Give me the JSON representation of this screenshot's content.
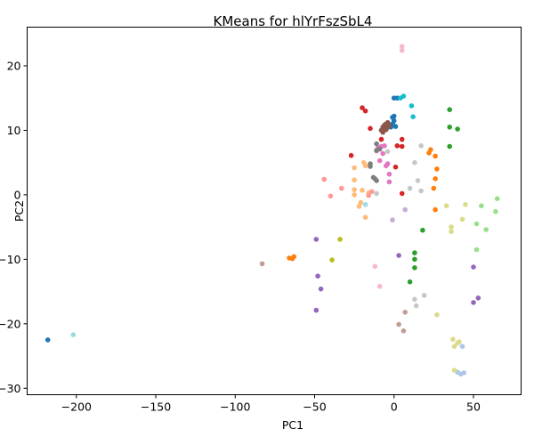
{
  "chart_data": {
    "type": "scatter",
    "title": "KMeans for hlYrFszSbL4",
    "xlabel": "PC1",
    "ylabel": "PC2",
    "xlim": [
      -231,
      80
    ],
    "ylim": [
      -31,
      26
    ],
    "xticks": [
      -200,
      -150,
      -100,
      -50,
      0,
      50
    ],
    "yticks": [
      -30,
      -20,
      -10,
      0,
      10,
      20
    ],
    "xtick_labels": [
      "−200",
      "−150",
      "−100",
      "−50",
      "0",
      "50"
    ],
    "ytick_labels": [
      "−30",
      "−20",
      "−10",
      "0",
      "10",
      "20"
    ],
    "grid": false,
    "series": [
      {
        "color": "#1f77b4",
        "points": [
          [
            -218,
            -22.5
          ],
          [
            0,
            15
          ],
          [
            2,
            15
          ],
          [
            -1,
            11
          ],
          [
            0,
            11.5
          ],
          [
            -2,
            10.5
          ],
          [
            -1,
            12
          ],
          [
            -3,
            10.8
          ],
          [
            1,
            10.6
          ],
          [
            0,
            12.2
          ],
          [
            -1,
            10.9
          ]
        ]
      },
      {
        "color": "#aec7e8",
        "points": [
          [
            40,
            -27.5
          ],
          [
            42,
            -27.8
          ],
          [
            43,
            -23.5
          ],
          [
            44,
            -27.6
          ]
        ]
      },
      {
        "color": "#ff7f0e",
        "points": [
          [
            -66,
            -9.8
          ],
          [
            -64,
            -9.9
          ],
          [
            -63,
            -9.6
          ],
          [
            22,
            6.5
          ],
          [
            23,
            7
          ],
          [
            25,
            1
          ],
          [
            26,
            2.5
          ],
          [
            26,
            6
          ],
          [
            27,
            4
          ],
          [
            26,
            -2.3
          ]
        ]
      },
      {
        "color": "#ffbb78",
        "points": [
          [
            -25,
            4.2
          ],
          [
            -25,
            0.8
          ],
          [
            -25,
            2.3
          ],
          [
            -25,
            0
          ],
          [
            -22,
            -1.8
          ],
          [
            -19,
            5
          ],
          [
            -18,
            -3.5
          ],
          [
            -21,
            -1.2
          ],
          [
            -18,
            4.5
          ],
          [
            -20,
            0.7
          ],
          [
            -16,
            0.3
          ]
        ]
      },
      {
        "color": "#2ca02c",
        "points": [
          [
            35,
            13.2
          ],
          [
            35,
            10.5
          ],
          [
            35,
            7.5
          ],
          [
            40,
            10.2
          ],
          [
            13,
            -9
          ],
          [
            13,
            -10
          ],
          [
            13,
            -11.3
          ],
          [
            10,
            -13.5
          ],
          [
            18,
            -5.5
          ]
        ]
      },
      {
        "color": "#98df8a",
        "points": [
          [
            65,
            -0.6
          ],
          [
            64,
            -2.6
          ],
          [
            55,
            -1.7
          ],
          [
            58,
            -5.4
          ],
          [
            52,
            -4.5
          ],
          [
            52,
            -8.5
          ]
        ]
      },
      {
        "color": "#d62728",
        "points": [
          [
            -20,
            13.5
          ],
          [
            -18,
            13
          ],
          [
            -15,
            10.3
          ],
          [
            5,
            8.6
          ],
          [
            5,
            7.5
          ],
          [
            2,
            7.6
          ],
          [
            -27,
            6.1
          ],
          [
            -8,
            8.6
          ],
          [
            -7,
            9.8
          ],
          [
            5,
            0.2
          ],
          [
            1,
            4.3
          ]
        ]
      },
      {
        "color": "#ff9896",
        "points": [
          [
            -44,
            2.4
          ],
          [
            -40,
            -0.2
          ],
          [
            -33,
            1
          ],
          [
            -16,
            -0.1
          ],
          [
            -14,
            0.5
          ]
        ]
      },
      {
        "color": "#9467bd",
        "points": [
          [
            -49,
            -6.9
          ],
          [
            -48,
            -12.6
          ],
          [
            -46,
            -14.6
          ],
          [
            -49,
            -17.9
          ],
          [
            53,
            -16
          ],
          [
            50,
            -16.7
          ],
          [
            50,
            -11.2
          ],
          [
            3,
            -9.4
          ]
        ]
      },
      {
        "color": "#c5b0d5",
        "points": [
          [
            -1,
            -3.9
          ],
          [
            7,
            -2.3
          ]
        ]
      },
      {
        "color": "#8c564b",
        "points": [
          [
            -8,
            10
          ],
          [
            -7,
            10.5
          ],
          [
            -6,
            10.8
          ],
          [
            -5,
            11
          ],
          [
            -4,
            10.5
          ],
          [
            -6,
            10.2
          ],
          [
            -3,
            10.7
          ],
          [
            -5,
            10.1
          ],
          [
            -7,
            9.7
          ],
          [
            -4,
            11.2
          ]
        ]
      },
      {
        "color": "#c49c94",
        "points": [
          [
            -83,
            -10.7
          ],
          [
            7,
            -18.2
          ],
          [
            3,
            -20.1
          ],
          [
            6,
            -21.1
          ]
        ]
      },
      {
        "color": "#e377c2",
        "points": [
          [
            -10,
            7.3
          ],
          [
            -8,
            7.5
          ],
          [
            -6,
            7.6
          ],
          [
            -7,
            6.4
          ],
          [
            -11,
            6.8
          ],
          [
            -4,
            4.8
          ],
          [
            -3,
            3.2
          ],
          [
            -3,
            2
          ],
          [
            -9,
            5.3
          ],
          [
            -5,
            4.5
          ],
          [
            -9,
            7.1
          ]
        ]
      },
      {
        "color": "#f7b6d2",
        "points": [
          [
            5,
            23
          ],
          [
            5,
            22.4
          ],
          [
            -12,
            -11.1
          ],
          [
            -9,
            -14.2
          ]
        ]
      },
      {
        "color": "#7f7f7f",
        "points": [
          [
            -15,
            4.8
          ],
          [
            -12,
            2.5
          ],
          [
            -11,
            2.2
          ],
          [
            -11,
            6.9
          ],
          [
            -15,
            4.4
          ],
          [
            -9,
            7.1
          ],
          [
            -11,
            7.9
          ],
          [
            -13,
            2.7
          ]
        ]
      },
      {
        "color": "#c7c7c7",
        "points": [
          [
            13,
            5
          ],
          [
            17,
            7.6
          ],
          [
            15,
            2.2
          ],
          [
            10,
            1
          ],
          [
            17,
            0.6
          ],
          [
            19,
            -15.6
          ],
          [
            13,
            -16.2
          ],
          [
            14,
            -17.2
          ],
          [
            -4,
            6.7
          ],
          [
            -11,
            0.2
          ]
        ]
      },
      {
        "color": "#bcbd22",
        "points": [
          [
            -34,
            -6.9
          ],
          [
            -39,
            -10.1
          ]
        ]
      },
      {
        "color": "#dbdb8d",
        "points": [
          [
            33,
            -1.7
          ],
          [
            36,
            -5
          ],
          [
            36,
            -5.7
          ],
          [
            43,
            -3.8
          ],
          [
            45,
            -1.5
          ],
          [
            27,
            -18.6
          ],
          [
            37,
            -22.4
          ],
          [
            38,
            -23.5
          ],
          [
            40,
            -23
          ],
          [
            41,
            -22.8
          ],
          [
            38,
            -27.2
          ]
        ]
      },
      {
        "color": "#17becf",
        "points": [
          [
            4,
            15
          ],
          [
            6,
            15.3
          ],
          [
            11,
            13.8
          ],
          [
            12,
            12.1
          ]
        ]
      },
      {
        "color": "#9edae5",
        "points": [
          [
            -202,
            -21.7
          ],
          [
            -18,
            -1.5
          ]
        ]
      }
    ]
  }
}
